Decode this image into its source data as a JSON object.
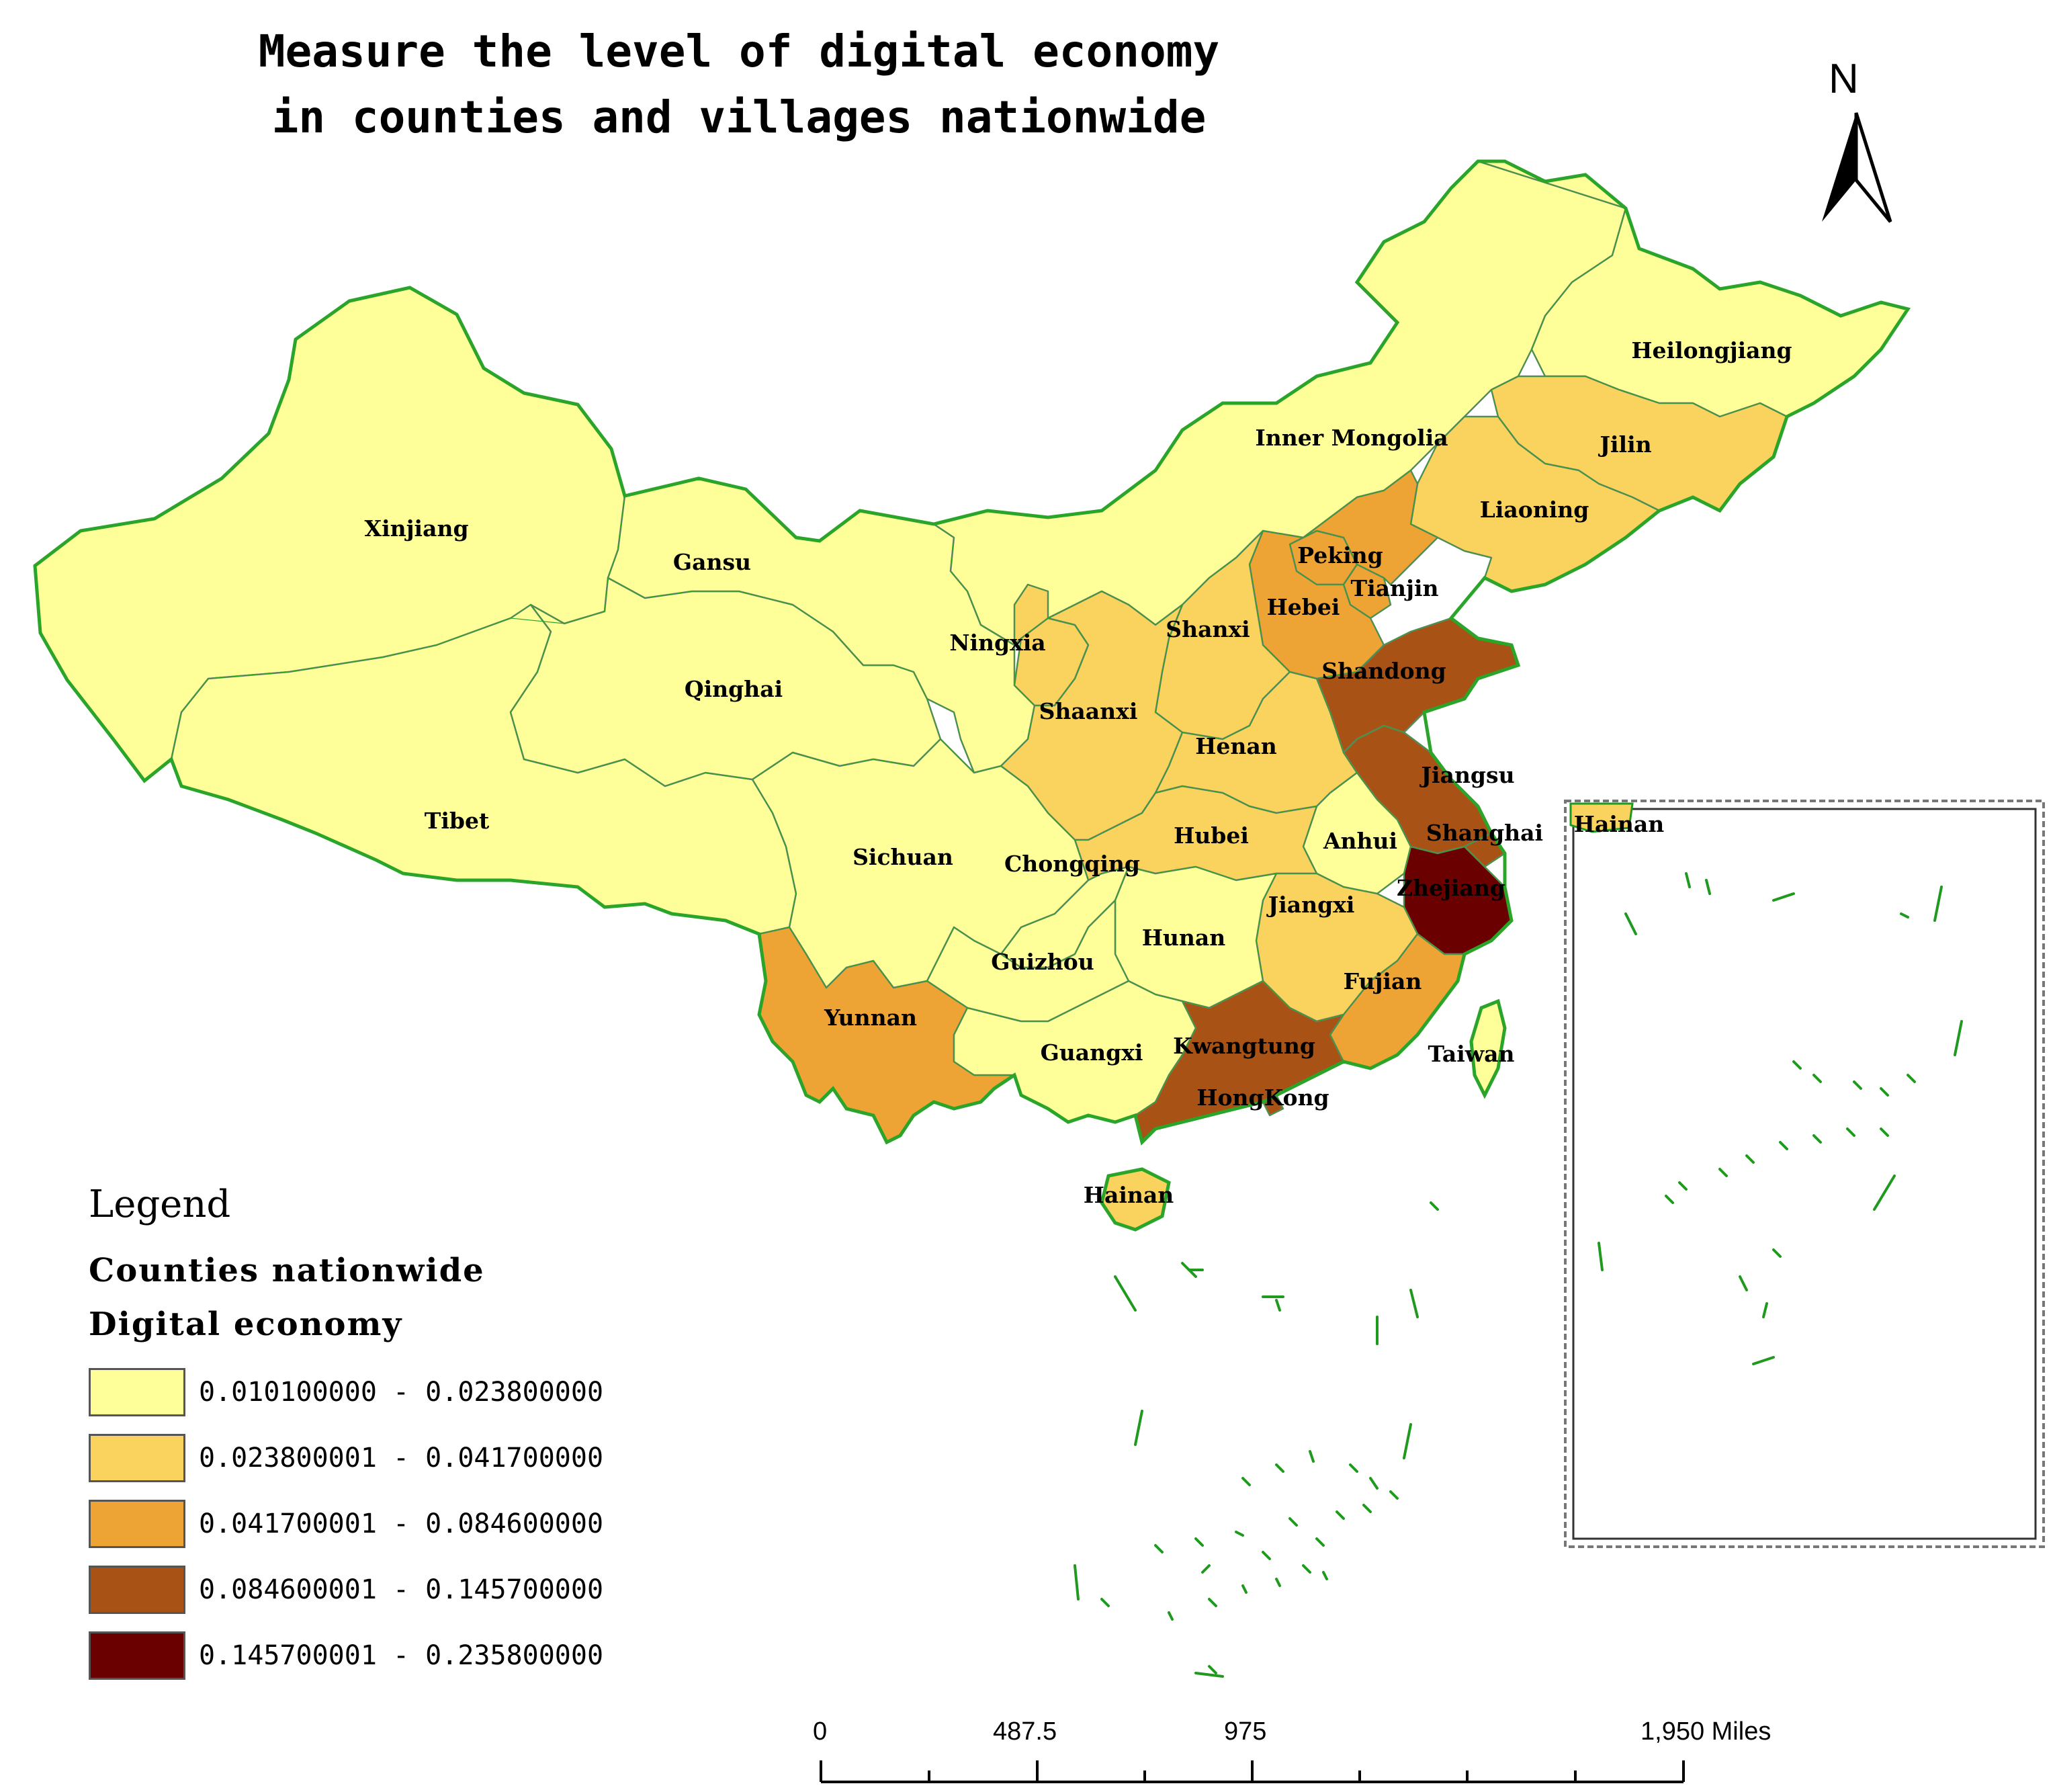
{
  "title": {
    "line1": "Measure the level of digital economy",
    "line2": "in counties and villages nationwide"
  },
  "north_arrow": {
    "label": "N"
  },
  "legend": {
    "heading": "Legend",
    "layer": "Counties nationwide",
    "field": "Digital economy",
    "classes": [
      {
        "range": "0.010100000 - 0.023800000",
        "color": "#ffff99"
      },
      {
        "range": "0.023800001 - 0.041700000",
        "color": "#fad35f"
      },
      {
        "range": "0.041700001 - 0.084600000",
        "color": "#eda434"
      },
      {
        "range": "0.084600001 - 0.145700000",
        "color": "#a85215"
      },
      {
        "range": "0.145700001 - 0.235800000",
        "color": "#6a0000"
      }
    ]
  },
  "scale_bar": {
    "labels": [
      "0",
      "487.5",
      "975",
      "1,950 Miles"
    ]
  },
  "inset": {
    "label": "Hainan"
  },
  "provinces": [
    {
      "name": "Xinjiang",
      "class": 0
    },
    {
      "name": "Tibet",
      "class": 0
    },
    {
      "name": "Qinghai",
      "class": 0
    },
    {
      "name": "Gansu",
      "class": 0
    },
    {
      "name": "Inner Mongolia",
      "class": 0
    },
    {
      "name": "Heilongjiang",
      "class": 0
    },
    {
      "name": "Jilin",
      "class": 1
    },
    {
      "name": "Liaoning",
      "class": 1
    },
    {
      "name": "Peking",
      "class": 2
    },
    {
      "name": "Tianjin",
      "class": 2
    },
    {
      "name": "Hebei",
      "class": 2
    },
    {
      "name": "Shanxi",
      "class": 1
    },
    {
      "name": "Ningxia",
      "class": 1
    },
    {
      "name": "Shaanxi",
      "class": 1
    },
    {
      "name": "Shandong",
      "class": 3
    },
    {
      "name": "Henan",
      "class": 1
    },
    {
      "name": "Jiangsu",
      "class": 3
    },
    {
      "name": "Anhui",
      "class": 0
    },
    {
      "name": "Shanghai",
      "class": 3
    },
    {
      "name": "Hubei",
      "class": 1
    },
    {
      "name": "Sichuan",
      "class": 0
    },
    {
      "name": "Chongqing",
      "class": 0
    },
    {
      "name": "Zhejiang",
      "class": 4
    },
    {
      "name": "Jiangxi",
      "class": 1
    },
    {
      "name": "Hunan",
      "class": 0
    },
    {
      "name": "Guizhou",
      "class": 0
    },
    {
      "name": "Fujian",
      "class": 2
    },
    {
      "name": "Yunnan",
      "class": 2
    },
    {
      "name": "Guangxi",
      "class": 0
    },
    {
      "name": "Kwangtung",
      "class": 3
    },
    {
      "name": "HongKong",
      "class": 3
    },
    {
      "name": "Taiwan",
      "class": 0
    },
    {
      "name": "Hainan",
      "class": 1
    }
  ]
}
